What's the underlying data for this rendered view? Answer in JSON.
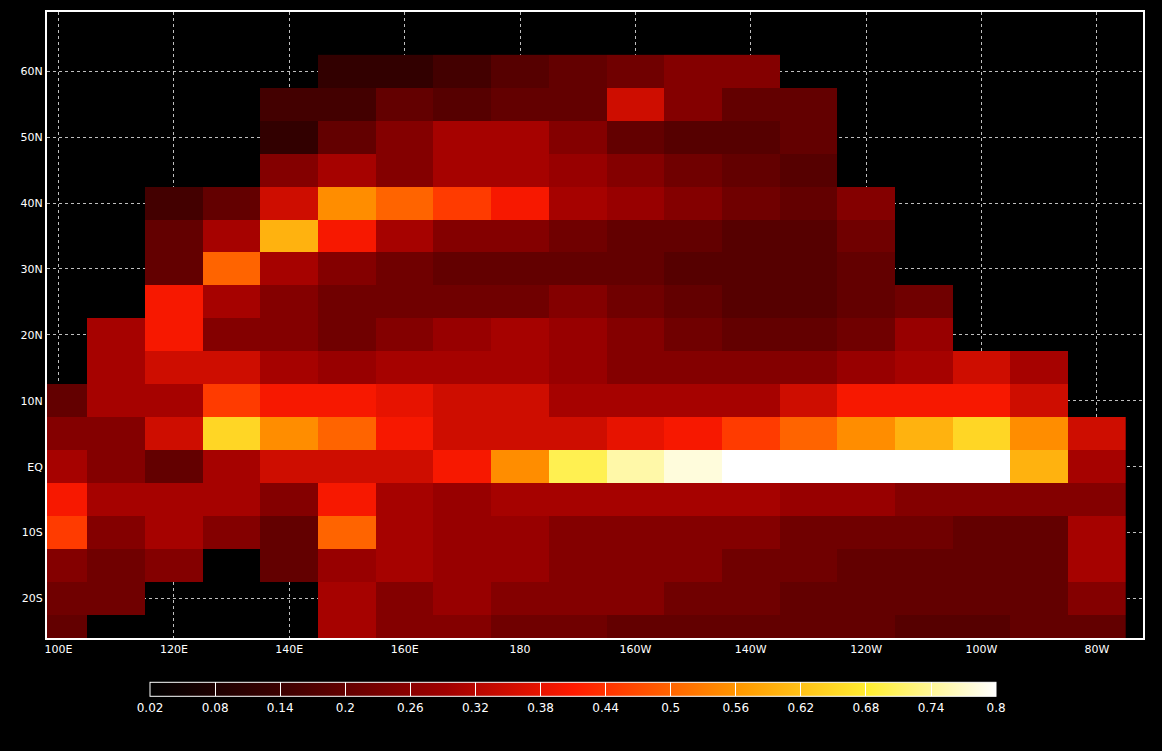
{
  "chart_data": {
    "type": "heatmap",
    "x": [
      100,
      110,
      120,
      130,
      140,
      150,
      160,
      170,
      180,
      190,
      200,
      210,
      220,
      230,
      240,
      250,
      260,
      270,
      280
    ],
    "y": [
      -25,
      -20,
      -15,
      -10,
      -5,
      0,
      5,
      10,
      15,
      20,
      25,
      30,
      35,
      40,
      45,
      50,
      55,
      60
    ],
    "z": [
      [
        0.2,
        null,
        null,
        null,
        null,
        0.3,
        0.25,
        0.25,
        0.22,
        0.22,
        0.2,
        0.2,
        0.2,
        0.2,
        0.2,
        0.18,
        0.18,
        0.2,
        0.2
      ],
      [
        0.22,
        0.22,
        null,
        null,
        null,
        0.3,
        0.25,
        0.28,
        0.25,
        0.25,
        0.25,
        0.22,
        0.22,
        0.2,
        0.2,
        0.2,
        0.2,
        0.2,
        0.25
      ],
      [
        0.25,
        0.22,
        0.25,
        null,
        0.2,
        0.28,
        0.3,
        0.28,
        0.28,
        0.25,
        0.25,
        0.25,
        0.22,
        0.22,
        0.2,
        0.2,
        0.2,
        0.2,
        0.3
      ],
      [
        0.45,
        0.25,
        0.3,
        0.25,
        0.2,
        0.5,
        0.3,
        0.28,
        0.28,
        0.25,
        0.25,
        0.25,
        0.25,
        0.22,
        0.22,
        0.22,
        0.2,
        0.2,
        0.3
      ],
      [
        0.4,
        0.3,
        0.3,
        0.3,
        0.25,
        0.4,
        0.3,
        0.28,
        0.3,
        0.3,
        0.3,
        0.3,
        0.3,
        0.28,
        0.28,
        0.25,
        0.25,
        0.25,
        0.25
      ],
      [
        0.3,
        0.25,
        0.2,
        0.3,
        0.35,
        0.35,
        0.35,
        0.4,
        0.55,
        0.7,
        0.75,
        0.78,
        0.8,
        0.8,
        0.8,
        0.8,
        0.8,
        0.6,
        0.3
      ],
      [
        0.25,
        0.25,
        0.35,
        0.65,
        0.55,
        0.5,
        0.4,
        0.35,
        0.35,
        0.35,
        0.38,
        0.4,
        0.45,
        0.5,
        0.55,
        0.6,
        0.65,
        0.55,
        0.35
      ],
      [
        0.2,
        0.3,
        0.3,
        0.45,
        0.4,
        0.4,
        0.38,
        0.35,
        0.35,
        0.3,
        0.3,
        0.3,
        0.3,
        0.35,
        0.4,
        0.4,
        0.4,
        0.35,
        null
      ],
      [
        null,
        0.3,
        0.35,
        0.35,
        0.3,
        0.28,
        0.3,
        0.3,
        0.3,
        0.28,
        0.25,
        0.25,
        0.25,
        0.25,
        0.28,
        0.3,
        0.35,
        0.3,
        null
      ],
      [
        null,
        0.3,
        0.4,
        0.25,
        0.25,
        0.22,
        0.25,
        0.28,
        0.3,
        0.28,
        0.25,
        0.22,
        0.2,
        0.2,
        0.22,
        0.28,
        null,
        null,
        null
      ],
      [
        null,
        null,
        0.4,
        0.3,
        0.25,
        0.22,
        0.22,
        0.22,
        0.22,
        0.25,
        0.22,
        0.2,
        0.18,
        0.18,
        0.2,
        0.22,
        null,
        null,
        null
      ],
      [
        null,
        null,
        0.2,
        0.5,
        0.3,
        0.25,
        0.22,
        0.2,
        0.2,
        0.2,
        0.2,
        0.18,
        0.18,
        0.18,
        0.2,
        null,
        null,
        null,
        null
      ],
      [
        null,
        null,
        0.2,
        0.3,
        0.6,
        0.4,
        0.3,
        0.25,
        0.25,
        0.22,
        0.2,
        0.2,
        0.18,
        0.18,
        0.22,
        null,
        null,
        null,
        null
      ],
      [
        null,
        null,
        0.15,
        0.2,
        0.35,
        0.55,
        0.5,
        0.45,
        0.4,
        0.3,
        0.28,
        0.25,
        0.22,
        0.2,
        0.25,
        null,
        null,
        null,
        null
      ],
      [
        null,
        null,
        null,
        null,
        0.25,
        0.3,
        0.25,
        0.3,
        0.3,
        0.28,
        0.25,
        0.22,
        0.2,
        0.18,
        null,
        null,
        null,
        null,
        null
      ],
      [
        null,
        null,
        null,
        null,
        0.12,
        0.2,
        0.25,
        0.3,
        0.3,
        0.25,
        0.2,
        0.18,
        0.18,
        0.2,
        null,
        null,
        null,
        null,
        null
      ],
      [
        null,
        null,
        null,
        null,
        0.15,
        0.15,
        0.2,
        0.18,
        0.2,
        0.2,
        0.35,
        0.25,
        0.2,
        0.2,
        null,
        null,
        null,
        null,
        null
      ],
      [
        null,
        null,
        null,
        null,
        null,
        0.12,
        0.12,
        0.15,
        0.18,
        0.2,
        0.22,
        0.25,
        0.25,
        null,
        null,
        null,
        null,
        null,
        null
      ]
    ],
    "xlim": [
      98,
      288
    ],
    "ylim": [
      -26,
      69
    ],
    "xticks": [
      {
        "value": 100,
        "label": "100E"
      },
      {
        "value": 120,
        "label": "120E"
      },
      {
        "value": 140,
        "label": "140E"
      },
      {
        "value": 160,
        "label": "160E"
      },
      180,
      {
        "value": 200,
        "label": "160W"
      },
      {
        "value": 220,
        "label": "140W"
      },
      {
        "value": 240,
        "label": "120W"
      },
      {
        "value": 260,
        "label": "100W"
      },
      {
        "value": 280,
        "label": "80W"
      }
    ],
    "yticks": [
      {
        "value": -20,
        "label": "20S"
      },
      {
        "value": -10,
        "label": "10S"
      },
      {
        "value": 0,
        "label": "EQ"
      },
      {
        "value": 10,
        "label": "10N"
      },
      {
        "value": 20,
        "label": "20N"
      },
      {
        "value": 30,
        "label": "30N"
      },
      {
        "value": 40,
        "label": "40N"
      },
      {
        "value": 50,
        "label": "50N"
      },
      {
        "value": 60,
        "label": "60N"
      }
    ],
    "grid": true,
    "zlim": [
      0.02,
      0.8
    ],
    "colorbar_ticks": [
      0.02,
      0.08,
      0.14,
      0.2,
      0.26,
      0.32,
      0.38,
      0.44,
      0.5,
      0.56,
      0.62,
      0.68,
      0.74,
      0.8
    ]
  }
}
